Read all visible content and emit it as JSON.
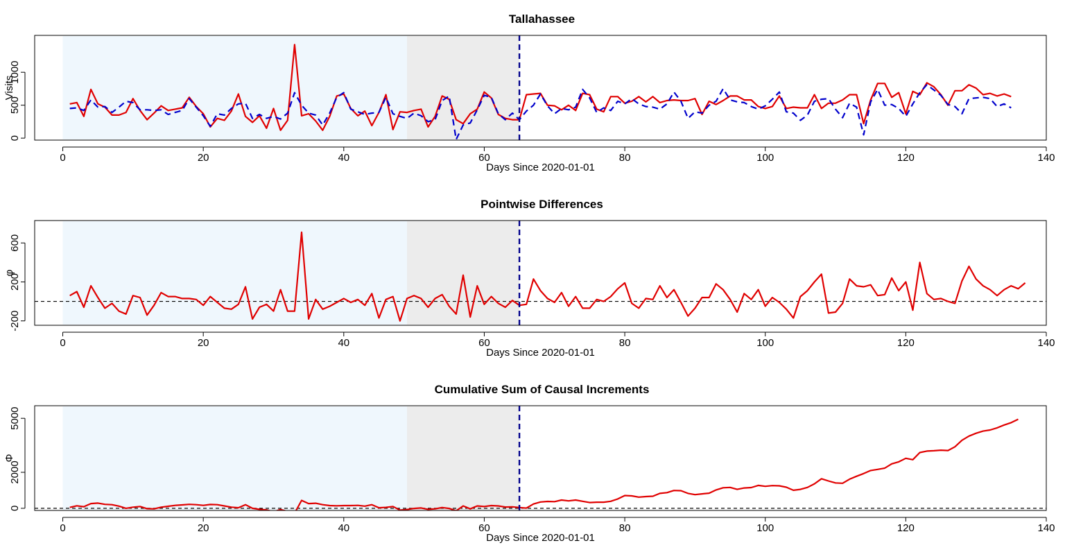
{
  "colors": {
    "pre_region": "#eff7fd",
    "holdout_region": "#ececec",
    "intervention_line": "#00008b",
    "observed": "#e00000",
    "counterfactual": "#0000cc",
    "zero_line": "#000000"
  },
  "chart_data": [
    {
      "type": "line",
      "title": "Tallahassee",
      "xlabel": "Days Since 2020-01-01",
      "ylabel": "Visits",
      "xlim": [
        -4,
        140
      ],
      "ylim": [
        -30,
        1560
      ],
      "xticks": [
        0,
        20,
        40,
        60,
        80,
        100,
        120,
        140
      ],
      "yticks": [
        0,
        500,
        1000
      ],
      "shaded_regions": [
        {
          "from": 0,
          "to": 49,
          "color": "#eff7fd"
        },
        {
          "from": 49,
          "to": 65,
          "color": "#ececec"
        }
      ],
      "vline": 65,
      "zero_line": false,
      "series": [
        {
          "style": "solid",
          "color": "#e00000",
          "x_start": 1,
          "values": [
            520,
            540,
            330,
            740,
            520,
            470,
            350,
            350,
            390,
            600,
            420,
            280,
            380,
            490,
            420,
            440,
            460,
            620,
            480,
            370,
            170,
            300,
            270,
            410,
            670,
            330,
            240,
            340,
            150,
            450,
            120,
            270,
            1420,
            340,
            370,
            260,
            120,
            330,
            640,
            670,
            450,
            340,
            410,
            190,
            390,
            660,
            130,
            400,
            390,
            420,
            440,
            170,
            330,
            640,
            590,
            280,
            220,
            370,
            440,
            700,
            610,
            360,
            300,
            280,
            280,
            660,
            670,
            680,
            500,
            490,
            430,
            500,
            420,
            680,
            660,
            440,
            400,
            630,
            630,
            530,
            560,
            630,
            550,
            630,
            540,
            570,
            580,
            570,
            570,
            600,
            360,
            560,
            510,
            570,
            640,
            640,
            580,
            580,
            480,
            450,
            480,
            640,
            450,
            470,
            460,
            460,
            660,
            450,
            530,
            530,
            580,
            660,
            660,
            220,
            580,
            830,
            830,
            620,
            690,
            370,
            710,
            660,
            840,
            780,
            660,
            500,
            720,
            720,
            810,
            760,
            660,
            680,
            640,
            670,
            630
          ]
        },
        {
          "style": "dashed",
          "color": "#0000cc",
          "x_start": 1,
          "values": [
            450,
            460,
            420,
            580,
            470,
            480,
            390,
            470,
            560,
            540,
            430,
            430,
            420,
            430,
            360,
            390,
            420,
            600,
            470,
            340,
            180,
            370,
            350,
            450,
            520,
            530,
            300,
            360,
            300,
            330,
            290,
            380,
            690,
            500,
            380,
            350,
            200,
            380,
            620,
            690,
            440,
            400,
            360,
            380,
            390,
            620,
            370,
            330,
            300,
            380,
            340,
            250,
            280,
            570,
            640,
            -20,
            200,
            230,
            430,
            650,
            620,
            370,
            280,
            380,
            280,
            410,
            500,
            670,
            490,
            370,
            450,
            430,
            470,
            740,
            610,
            390,
            460,
            420,
            560,
            520,
            600,
            520,
            480,
            470,
            440,
            520,
            700,
            560,
            300,
            400,
            380,
            500,
            560,
            750,
            580,
            550,
            540,
            480,
            440,
            490,
            590,
            700,
            400,
            380,
            270,
            350,
            560,
            590,
            600,
            440,
            310,
            530,
            470,
            50,
            550,
            740,
            500,
            510,
            450,
            330,
            520,
            690,
            810,
            730,
            650,
            510,
            480,
            370,
            600,
            610,
            620,
            600,
            480,
            520,
            460
          ]
        }
      ]
    },
    {
      "type": "line",
      "title": "Pointwise Differences",
      "xlabel": "Days Since 2020-01-01",
      "ylabel": "φ",
      "xlim": [
        -4,
        140
      ],
      "ylim": [
        -245,
        830
      ],
      "xticks": [
        0,
        20,
        40,
        60,
        80,
        100,
        120,
        140
      ],
      "yticks": [
        -200,
        200,
        600
      ],
      "shaded_regions": [
        {
          "from": 0,
          "to": 49,
          "color": "#eff7fd"
        },
        {
          "from": 49,
          "to": 65,
          "color": "#ececec"
        }
      ],
      "vline": 65,
      "zero_line": true,
      "series": [
        {
          "style": "solid",
          "color": "#e00000",
          "x_start": 1,
          "values": [
            60,
            100,
            -60,
            160,
            40,
            -70,
            -20,
            -100,
            -130,
            60,
            40,
            -140,
            -40,
            90,
            50,
            50,
            30,
            30,
            20,
            -40,
            50,
            -10,
            -70,
            -80,
            -30,
            150,
            -180,
            -60,
            -30,
            -100,
            120,
            -100,
            -100,
            710,
            -180,
            20,
            -80,
            -50,
            -10,
            30,
            -10,
            20,
            -40,
            80,
            -170,
            20,
            50,
            -200,
            30,
            60,
            30,
            -60,
            30,
            70,
            -50,
            -130,
            270,
            -160,
            160,
            -30,
            50,
            -20,
            -60,
            10,
            -40,
            -30,
            230,
            110,
            30,
            -10,
            90,
            -50,
            50,
            -70,
            -70,
            20,
            0,
            50,
            130,
            190,
            -20,
            -70,
            30,
            20,
            160,
            40,
            120,
            -10,
            -150,
            -70,
            40,
            40,
            180,
            120,
            20,
            -110,
            80,
            20,
            120,
            -50,
            40,
            -10,
            -80,
            -170,
            50,
            110,
            200,
            280,
            -120,
            -110,
            -20,
            230,
            160,
            150,
            170,
            60,
            70,
            240,
            110,
            200,
            -90,
            400,
            80,
            20,
            30,
            0,
            -20,
            210,
            360,
            230,
            160,
            120,
            60,
            120,
            160,
            130,
            190
          ]
        }
      ]
    },
    {
      "type": "line",
      "title": "Cumulative Sum of Causal Increments",
      "xlabel": "Days Since 2020-01-01",
      "ylabel": "Φ",
      "xlim": [
        -4,
        140
      ],
      "ylim": [
        -120,
        5700
      ],
      "xticks": [
        0,
        20,
        40,
        60,
        80,
        100,
        120,
        140
      ],
      "yticks": [
        0,
        2000,
        5000
      ],
      "shaded_regions": [
        {
          "from": 0,
          "to": 49,
          "color": "#eff7fd"
        },
        {
          "from": 49,
          "to": 65,
          "color": "#ececec"
        }
      ],
      "vline": 65,
      "zero_line": true,
      "series": [
        {
          "style": "solid",
          "color": "#e00000",
          "x_start": 1,
          "values": [
            50,
            140,
            90,
            260,
            290,
            220,
            200,
            120,
            0,
            60,
            100,
            -20,
            -30,
            60,
            110,
            160,
            190,
            220,
            200,
            160,
            210,
            200,
            130,
            60,
            30,
            200,
            0,
            -60,
            -90,
            -190,
            -70,
            -170,
            -270,
            440,
            260,
            280,
            200,
            150,
            140,
            150,
            150,
            160,
            120,
            200,
            30,
            50,
            100,
            -100,
            -70,
            -10,
            20,
            -60,
            -30,
            40,
            -10,
            -140,
            130,
            -30,
            130,
            100,
            150,
            130,
            70,
            80,
            40,
            10,
            240,
            350,
            380,
            370,
            460,
            410,
            460,
            390,
            320,
            340,
            340,
            390,
            520,
            710,
            690,
            620,
            650,
            670,
            830,
            870,
            990,
            980,
            830,
            760,
            800,
            840,
            1020,
            1140,
            1160,
            1050,
            1130,
            1150,
            1270,
            1220,
            1260,
            1250,
            1170,
            1000,
            1050,
            1160,
            1360,
            1640,
            1520,
            1410,
            1390,
            1620,
            1780,
            1930,
            2100,
            2160,
            2230,
            2470,
            2580,
            2780,
            2700,
            3100,
            3180,
            3200,
            3230,
            3210,
            3420,
            3780,
            4010,
            4170,
            4290,
            4350,
            4470,
            4630,
            4760,
            4950
          ]
        }
      ]
    }
  ]
}
